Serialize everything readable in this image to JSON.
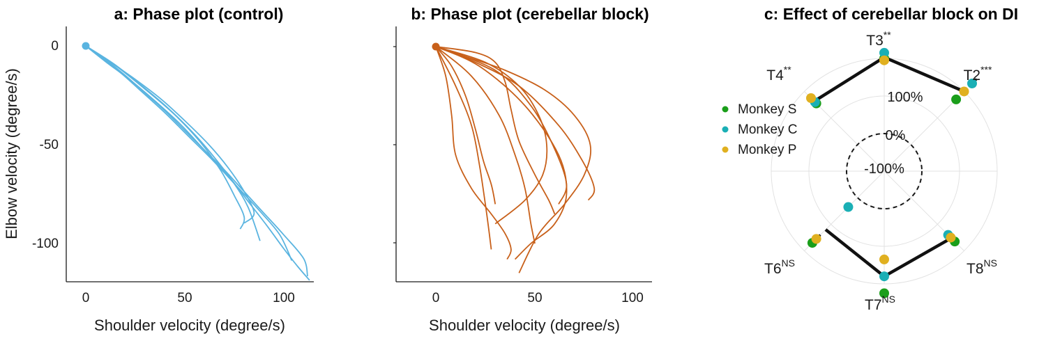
{
  "chart_data": [
    {
      "type": "line",
      "panel": "a",
      "title": "a: Phase plot (control)",
      "xlabel": "Shoulder velocity (degree/s)",
      "ylabel": "Elbow velocity (degree/s)",
      "xticks": [
        "0",
        "50",
        "100"
      ],
      "yticks": [
        "0",
        "-50",
        "-100"
      ],
      "xlim": [
        -10,
        115
      ],
      "ylim": [
        -120,
        10
      ],
      "color": "#5ab4e0",
      "start_point": [
        0,
        0
      ],
      "series": [
        {
          "x": [
            0,
            10,
            20,
            30,
            40,
            50,
            60,
            70,
            80,
            90,
            100,
            110,
            112
          ],
          "y": [
            0,
            -7,
            -15,
            -24,
            -33,
            -43,
            -53,
            -63,
            -74,
            -85,
            -96,
            -108,
            -117
          ]
        },
        {
          "x": [
            0,
            12,
            25,
            38,
            50,
            62,
            72,
            80,
            85,
            80
          ],
          "y": [
            0,
            -8,
            -17,
            -27,
            -38,
            -50,
            -62,
            -74,
            -85,
            -90
          ]
        },
        {
          "x": [
            0,
            15,
            30,
            45,
            58,
            68,
            75,
            80,
            78
          ],
          "y": [
            0,
            -10,
            -22,
            -35,
            -49,
            -63,
            -76,
            -87,
            -93
          ]
        },
        {
          "x": [
            0,
            8,
            18,
            28,
            40,
            52,
            64,
            76,
            88,
            98,
            104
          ],
          "y": [
            0,
            -6,
            -14,
            -23,
            -34,
            -46,
            -58,
            -71,
            -84,
            -96,
            -109
          ]
        },
        {
          "x": [
            0,
            14,
            28,
            42,
            55,
            66,
            75,
            82,
            88
          ],
          "y": [
            0,
            -9,
            -20,
            -32,
            -45,
            -58,
            -70,
            -82,
            -99
          ]
        },
        {
          "x": [
            0,
            10,
            22,
            35,
            48,
            60,
            72,
            82,
            92,
            100,
            107,
            113
          ],
          "y": [
            0,
            -8,
            -17,
            -28,
            -40,
            -53,
            -66,
            -79,
            -92,
            -103,
            -112,
            -119
          ]
        }
      ]
    },
    {
      "type": "line",
      "panel": "b",
      "title": "b: Phase plot (cerebellar block)",
      "xlabel": "Shoulder velocity (degree/s)",
      "xticks": [
        "0",
        "50",
        "100"
      ],
      "xlim": [
        -20,
        110
      ],
      "ylim": [
        -120,
        10
      ],
      "color": "#c8601a",
      "start_point": [
        0,
        0
      ],
      "series": [
        {
          "x": [
            0,
            15,
            35,
            55,
            70,
            78,
            75,
            65,
            52,
            42
          ],
          "y": [
            0,
            -5,
            -12,
            -22,
            -35,
            -50,
            -65,
            -80,
            -95,
            -115
          ]
        },
        {
          "x": [
            0,
            5,
            8,
            10,
            18,
            28,
            35,
            38,
            36
          ],
          "y": [
            0,
            -15,
            -35,
            -55,
            -72,
            -85,
            -95,
            -103,
            -108
          ]
        },
        {
          "x": [
            0,
            20,
            30,
            35,
            38,
            42,
            50,
            57,
            60
          ],
          "y": [
            0,
            -3,
            -8,
            -18,
            -32,
            -48,
            -65,
            -78,
            -85
          ]
        },
        {
          "x": [
            0,
            8,
            15,
            20,
            24,
            28,
            30
          ],
          "y": [
            0,
            -10,
            -25,
            -42,
            -58,
            -70,
            -80
          ]
        },
        {
          "x": [
            0,
            25,
            42,
            52,
            56,
            54,
            45,
            30
          ],
          "y": [
            0,
            -8,
            -20,
            -35,
            -50,
            -65,
            -78,
            -90
          ]
        },
        {
          "x": [
            0,
            10,
            18,
            22,
            25,
            27,
            28
          ],
          "y": [
            0,
            -20,
            -40,
            -60,
            -80,
            -95,
            -103
          ]
        },
        {
          "x": [
            0,
            22,
            45,
            62,
            66,
            60,
            48,
            40
          ],
          "y": [
            0,
            -10,
            -30,
            -55,
            -75,
            -90,
            -100,
            -108
          ]
        },
        {
          "x": [
            0,
            30,
            48,
            60,
            66,
            62
          ],
          "y": [
            0,
            -12,
            -30,
            -52,
            -70,
            -80
          ]
        },
        {
          "x": [
            0,
            18,
            32,
            40,
            45,
            48,
            50
          ],
          "y": [
            0,
            -15,
            -35,
            -55,
            -72,
            -90,
            -100
          ]
        },
        {
          "x": [
            0,
            20,
            42,
            62,
            74,
            80,
            77
          ],
          "y": [
            0,
            -8,
            -20,
            -40,
            -58,
            -72,
            -78
          ]
        }
      ]
    },
    {
      "type": "radar",
      "panel": "c",
      "title": "c: Effect of cerebellar block on DI",
      "directions": [
        {
          "label": "T2",
          "sig": "***",
          "angle_deg": 45
        },
        {
          "label": "T3",
          "sig": "**",
          "angle_deg": 90
        },
        {
          "label": "T4",
          "sig": "**",
          "angle_deg": 135
        },
        {
          "label": "T6",
          "sig": "NS",
          "angle_deg": 225
        },
        {
          "label": "T7",
          "sig": "NS",
          "angle_deg": 270
        },
        {
          "label": "T8",
          "sig": "NS",
          "angle_deg": 315
        }
      ],
      "ring_labels": [
        "100%",
        "0%",
        "-100%"
      ],
      "rlim": [
        -200,
        200
      ],
      "series": [
        {
          "name": "Monkey S",
          "color": "#1a9e1a",
          "values": {
            "T2": 70,
            "T3": 100,
            "T4": 55,
            "T6": 70,
            "T7": 125,
            "T8": 65
          }
        },
        {
          "name": "Monkey C",
          "color": "#1aafb5",
          "values": {
            "T2": 130,
            "T3": 115,
            "T4": 60,
            "T6": -65,
            "T7": 80,
            "T8": 40
          }
        },
        {
          "name": "Monkey P",
          "color": "#e0b020",
          "values": {
            "T2": 100,
            "T3": 95,
            "T4": 75,
            "T6": 55,
            "T7": 35,
            "T8": 50
          }
        }
      ],
      "mean": {
        "T2": 100,
        "T3": 103,
        "T4": 63,
        "T6": 20,
        "T7": 80,
        "T8": 52
      }
    }
  ]
}
